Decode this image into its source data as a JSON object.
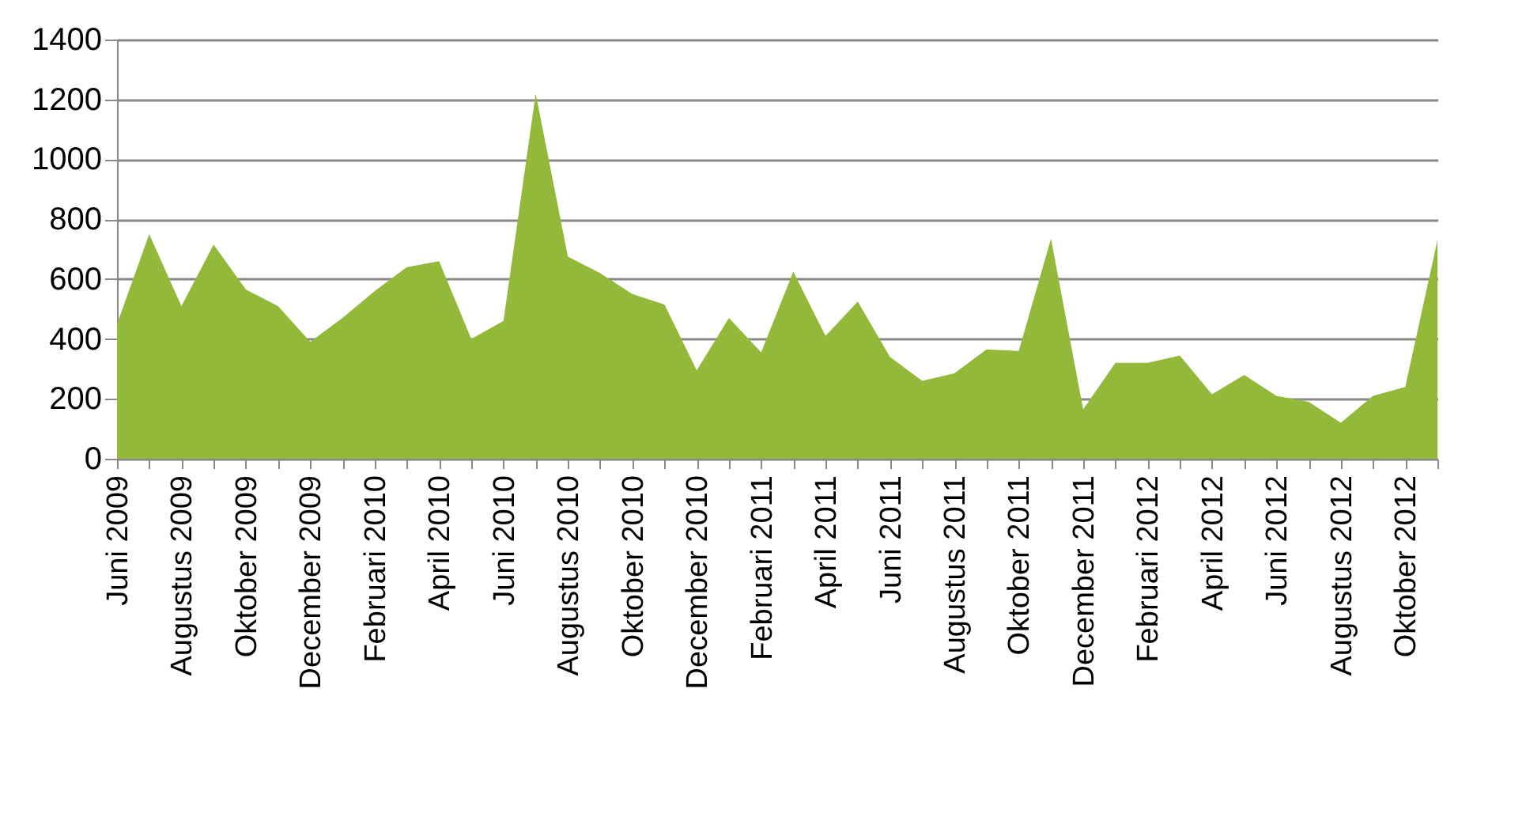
{
  "chart_data": {
    "type": "area",
    "categories": [
      "Juni 2009",
      null,
      "Augustus 2009",
      null,
      "Oktober 2009",
      null,
      "December 2009",
      null,
      "Februari 2010",
      null,
      "April 2010",
      null,
      "Juni 2010",
      null,
      "Augustus 2010",
      null,
      "Oktober 2010",
      null,
      "December 2010",
      null,
      "Februari 2011",
      null,
      "April 2011",
      null,
      "Juni 2011",
      null,
      "Augustus 2011",
      null,
      "Oktober 2011",
      null,
      "December 2011",
      null,
      "Februari 2012",
      null,
      "April 2012",
      null,
      "Juni 2012",
      null,
      "Augustus 2012",
      null,
      "Oktober 2012",
      null
    ],
    "series": [
      {
        "color": "#93b93b",
        "values": [
          450,
          750,
          510,
          715,
          565,
          510,
          390,
          470,
          560,
          640,
          660,
          400,
          460,
          1220,
          675,
          620,
          550,
          515,
          295,
          470,
          355,
          625,
          410,
          525,
          340,
          260,
          285,
          365,
          360,
          735,
          165,
          320,
          320,
          345,
          215,
          280,
          210,
          190,
          120,
          210,
          240,
          730
        ]
      }
    ],
    "ylim": [
      0,
      1400
    ],
    "yticks": [
      0,
      200,
      400,
      600,
      800,
      1000,
      1200,
      1400
    ],
    "grid": "y"
  }
}
